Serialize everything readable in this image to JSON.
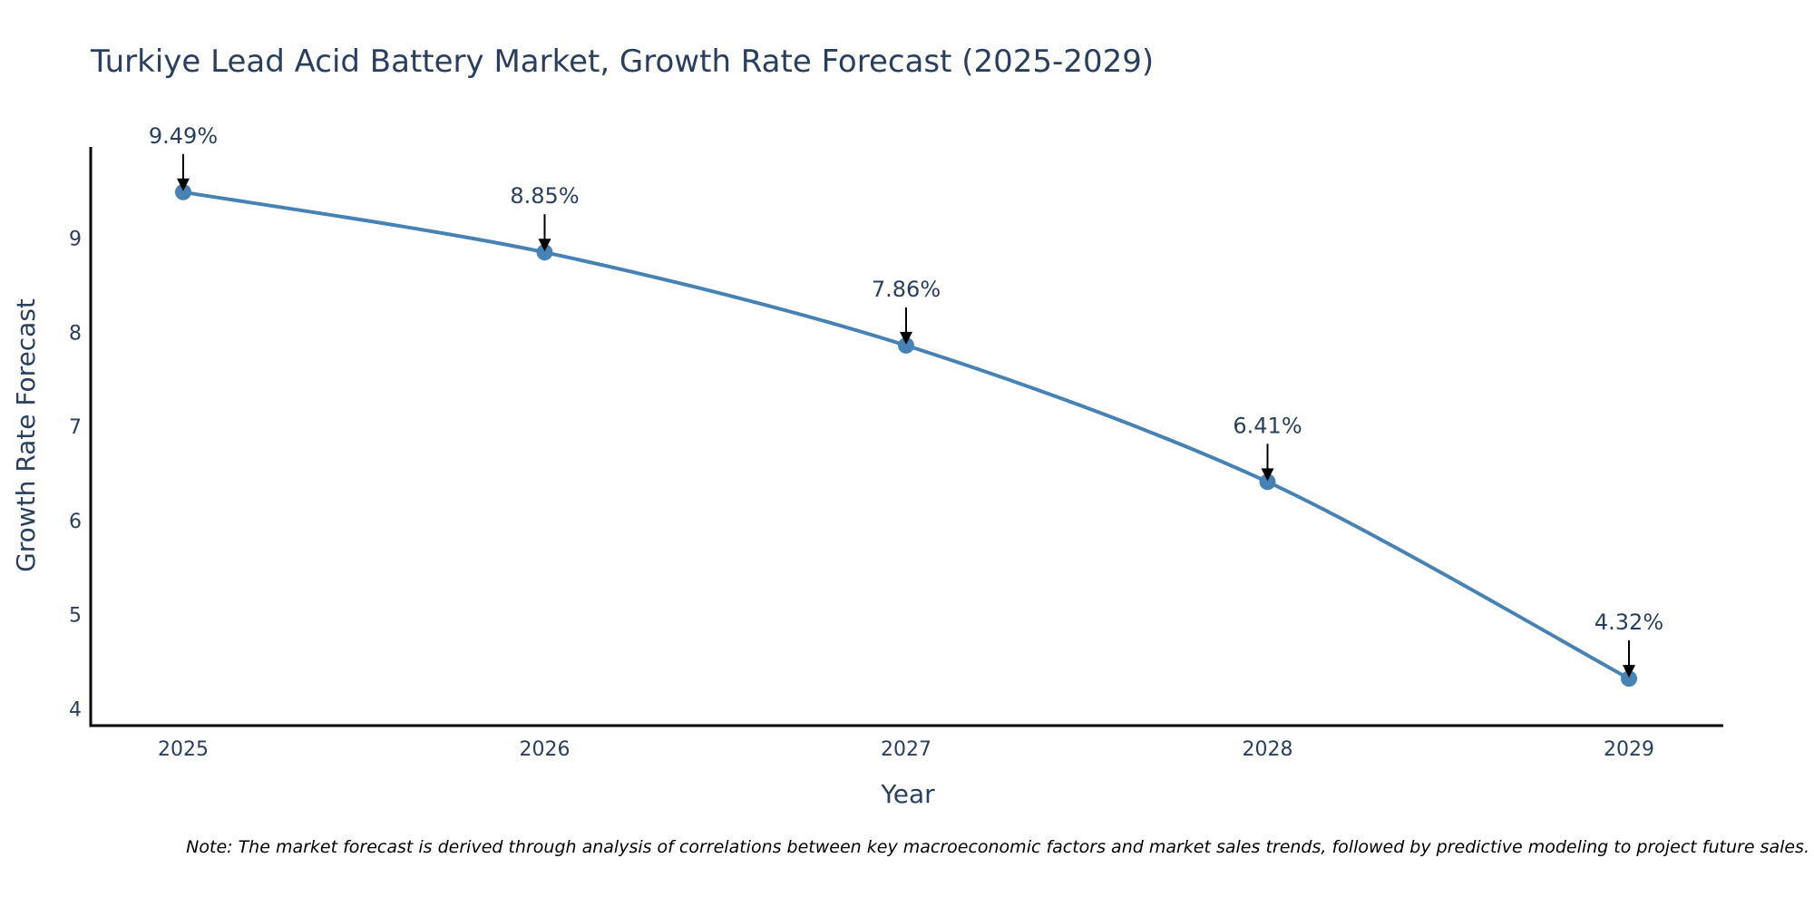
{
  "chart_data": {
    "type": "line",
    "title": "Turkiye Lead Acid Battery Market, Growth Rate Forecast (2025-2029)",
    "xlabel": "Year",
    "ylabel": "Growth Rate Forecast",
    "categories": [
      "2025",
      "2026",
      "2027",
      "2028",
      "2029"
    ],
    "values": [
      9.49,
      8.85,
      7.86,
      6.41,
      4.32
    ],
    "data_labels": [
      "9.49%",
      "8.85%",
      "7.86%",
      "6.41%",
      "4.32%"
    ],
    "y_ticks": [
      4,
      5,
      6,
      7,
      8,
      9
    ],
    "ylim": [
      3.82,
      9.97
    ],
    "grid": false,
    "legend": "none",
    "line_shape": "spline",
    "line_color": "#4682B4",
    "marker_color": "#4682B4",
    "annotation_arrow_color": "#000000",
    "axis_color": "#000000",
    "note": "Note: The market forecast is derived through analysis of correlations between key macroeconomic factors and market sales trends, followed by predictive modeling to project future sales."
  }
}
